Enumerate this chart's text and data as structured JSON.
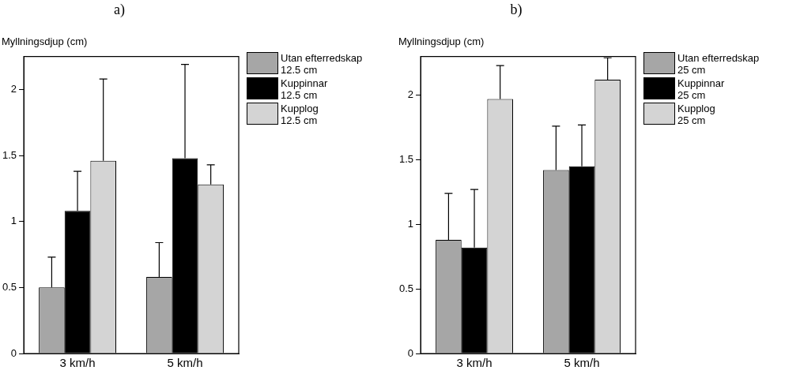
{
  "chart_data": [
    {
      "type": "bar",
      "title": "a)",
      "ylabel": "Myllningsdjup (cm)",
      "categories": [
        "3 km/h",
        "5 km/h"
      ],
      "ylim": [
        0,
        2.25
      ],
      "yticks": [
        0,
        0.5,
        1,
        1.5,
        2
      ],
      "grid": false,
      "legend": "top right",
      "series": [
        {
          "name": "Utan efterredskap\n12.5 cm",
          "color": "#a6a6a6",
          "values": [
            0.5,
            0.58
          ],
          "errors": [
            0.23,
            0.26
          ]
        },
        {
          "name": "Kuppinnar\n12.5 cm",
          "color": "#000000",
          "values": [
            1.08,
            1.48
          ],
          "errors": [
            0.3,
            0.71
          ]
        },
        {
          "name": "Kupplog\n12.5 cm",
          "color": "#d4d4d4",
          "values": [
            1.46,
            1.28
          ],
          "errors": [
            0.62,
            0.15
          ]
        }
      ]
    },
    {
      "type": "bar",
      "title": "b)",
      "ylabel": "Myllningsdjup (cm)",
      "categories": [
        "3 km/h",
        "5 km/h"
      ],
      "ylim": [
        0,
        2.3
      ],
      "yticks": [
        0,
        0.5,
        1,
        1.5,
        2
      ],
      "grid": false,
      "legend": "top right",
      "series": [
        {
          "name": "Utan efterredskap\n25 cm",
          "color": "#a6a6a6",
          "values": [
            0.88,
            1.42
          ],
          "errors": [
            0.36,
            0.34
          ]
        },
        {
          "name": "Kuppinnar\n25 cm",
          "color": "#000000",
          "values": [
            0.82,
            1.45
          ],
          "errors": [
            0.45,
            0.32
          ]
        },
        {
          "name": "Kupplog\n25 cm",
          "color": "#d4d4d4",
          "values": [
            1.97,
            2.12
          ],
          "errors": [
            0.26,
            0.17
          ]
        }
      ]
    }
  ]
}
